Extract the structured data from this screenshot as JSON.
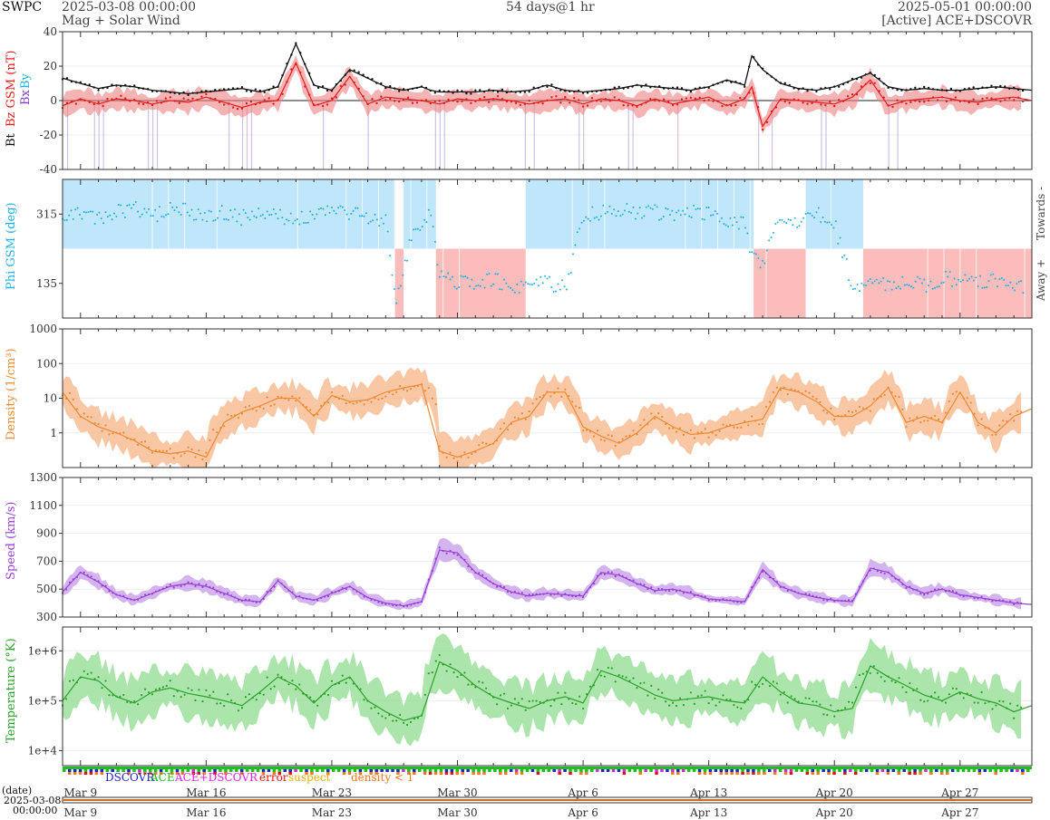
{
  "header": {
    "org": "SWPC",
    "start": "2025-03-08 00:00:00",
    "subtitle": "Mag + Solar Wind",
    "span": "54 days@1 hr",
    "end": "2025-05-01 00:00:00",
    "source": "[Active] ACE+DSCOVR"
  },
  "footer": {
    "date_label": "(date)",
    "date_value": "2025-03-08",
    "time_value": "00:00:00"
  },
  "colors": {
    "bt": "#111111",
    "bz": "#e81b1b",
    "bz_fill": "#f08080",
    "neg_bz": "#b9a6d9",
    "by": "#1fb0e6",
    "phi_towards": "#bfe6fb",
    "phi_away": "#fbbcbc",
    "density": "#f08a32",
    "density_fill": "#f7b486",
    "speed": "#9940d6",
    "speed_fill": "#c59be9",
    "temp": "#2aa22a",
    "temp_fill": "#8fdc8f",
    "dscovr": "#2222cc",
    "ace": "#22bb22",
    "ace_dscovr": "#dd22dd",
    "error": "#dd1111",
    "suspect": "#e0b000",
    "density_lt1": "#f07820"
  },
  "chart_data": [
    {
      "type": "line",
      "panel": "mag",
      "ylabel_parts": [
        "Bt",
        "Bz GSM (nT)",
        "Bx",
        "By"
      ],
      "ylim": [
        -40,
        40
      ],
      "yticks": [
        40,
        20,
        0,
        -20,
        -40
      ],
      "series": [
        {
          "name": "Bt",
          "x": [
            0,
            1,
            2,
            3,
            4,
            5,
            6,
            7,
            8,
            9,
            10,
            11,
            12,
            13,
            14,
            15,
            16,
            17,
            18,
            19,
            19.5,
            20,
            20.5,
            21,
            22,
            23,
            24,
            25,
            26,
            27,
            28,
            29,
            30,
            31,
            32,
            33,
            34,
            35,
            36,
            37,
            38,
            38.4,
            39,
            40,
            41,
            42,
            43,
            44,
            45,
            46,
            47,
            48,
            49,
            50,
            51,
            52,
            53,
            54
          ],
          "values": [
            13,
            10,
            7,
            9,
            8,
            6,
            5,
            4,
            5,
            6,
            7,
            5,
            8,
            33,
            9,
            6,
            18,
            13,
            8,
            6,
            7,
            8,
            6,
            5,
            5,
            5,
            6,
            5,
            6,
            9,
            6,
            5,
            6,
            7,
            9,
            8,
            7,
            6,
            8,
            12,
            9,
            26,
            18,
            10,
            7,
            6,
            8,
            12,
            16,
            8,
            6,
            7,
            6,
            6,
            7,
            8,
            7,
            6
          ]
        },
        {
          "name": "Bz GSM",
          "x": [
            0,
            1,
            2,
            3,
            4,
            5,
            6,
            7,
            8,
            9,
            10,
            11,
            12,
            13,
            14,
            15,
            16,
            17,
            18,
            19,
            20,
            21,
            22,
            23,
            24,
            25,
            26,
            27,
            28,
            29,
            30,
            31,
            32,
            33,
            34,
            35,
            36,
            37,
            38,
            38.4,
            39,
            40,
            41,
            42,
            43,
            44,
            45,
            46,
            47,
            48,
            49,
            50,
            51,
            52,
            53,
            54
          ],
          "values": [
            -3,
            1,
            -2,
            1,
            0,
            -2,
            0,
            -1,
            2,
            -1,
            -4,
            -1,
            0,
            22,
            -3,
            0,
            14,
            -2,
            2,
            1,
            0,
            -2,
            1,
            0,
            1,
            0,
            -2,
            0,
            1,
            -2,
            1,
            0,
            -3,
            1,
            -2,
            0,
            2,
            -3,
            1,
            8,
            -15,
            1,
            0,
            -1,
            -2,
            2,
            12,
            -3,
            0,
            1,
            2,
            0,
            -1,
            1,
            2,
            0
          ]
        }
      ]
    },
    {
      "type": "scatter",
      "panel": "phi",
      "ylabel": "Phi GSM (deg)",
      "yticks": [
        315,
        135
      ],
      "ylim": [
        45,
        405
      ],
      "side_labels": [
        "Towards -",
        "Away +"
      ],
      "sectors": [
        {
          "from": 0,
          "to": 18.5,
          "sector": "towards"
        },
        {
          "from": 18.5,
          "to": 19,
          "sector": "away"
        },
        {
          "from": 19,
          "to": 20.8,
          "sector": "towards"
        },
        {
          "from": 20.8,
          "to": 25.8,
          "sector": "away"
        },
        {
          "from": 25.8,
          "to": 38.5,
          "sector": "towards"
        },
        {
          "from": 38.5,
          "to": 41.4,
          "sector": "away"
        },
        {
          "from": 41.4,
          "to": 44.6,
          "sector": "towards"
        },
        {
          "from": 44.6,
          "to": 54,
          "sector": "away"
        }
      ],
      "series": [
        {
          "name": "Phi",
          "x": [
            0,
            1,
            2,
            3,
            4,
            5,
            6,
            7,
            8,
            9,
            10,
            11,
            12,
            13,
            14,
            15,
            16,
            17,
            18,
            18.6,
            19.5,
            20.5,
            21,
            22,
            23,
            24,
            25,
            26,
            27,
            28,
            29,
            30,
            31,
            32,
            33,
            34,
            35,
            36,
            37,
            38,
            38.3,
            39,
            40,
            41,
            42,
            43,
            44,
            45,
            46,
            47,
            48,
            49,
            50,
            51,
            52,
            53,
            54
          ],
          "values": [
            315,
            320,
            300,
            318,
            330,
            310,
            325,
            322,
            315,
            320,
            305,
            318,
            310,
            300,
            315,
            320,
            320,
            310,
            300,
            90,
            270,
            310,
            160,
            140,
            135,
            145,
            130,
            125,
            140,
            120,
            310,
            320,
            330,
            315,
            320,
            310,
            325,
            315,
            300,
            290,
            220,
            190,
            310,
            300,
            320,
            290,
            130,
            140,
            135,
            140,
            130,
            145,
            150,
            135,
            140,
            130,
            125
          ]
        }
      ]
    },
    {
      "type": "line",
      "panel": "density",
      "ylabel": "Density (1/cm³)",
      "scale": "log",
      "yticks": [
        "1000",
        "100",
        "10",
        "1"
      ],
      "ylim": [
        0.1,
        1000
      ],
      "series": [
        {
          "name": "Density",
          "x": [
            0,
            1,
            2,
            3,
            4,
            5,
            6,
            7,
            8,
            9,
            10,
            11,
            12,
            13,
            14,
            15,
            16,
            17,
            18,
            19,
            20,
            21,
            22,
            23,
            24,
            25,
            26,
            27,
            28,
            29,
            30,
            31,
            32,
            33,
            34,
            35,
            36,
            37,
            38,
            39,
            40,
            41,
            42,
            43,
            44,
            45,
            46,
            47,
            48,
            49,
            50,
            51,
            52,
            53,
            54
          ],
          "values": [
            15,
            3,
            1.5,
            1,
            0.6,
            0.3,
            0.25,
            0.3,
            0.2,
            2,
            4,
            6,
            10,
            10,
            3,
            12,
            8,
            9,
            15,
            20,
            25,
            0.3,
            0.2,
            0.3,
            0.5,
            2,
            3,
            15,
            15,
            1.5,
            0.8,
            0.5,
            1,
            3,
            1.5,
            0.9,
            1,
            1.5,
            2,
            2.5,
            20,
            15,
            8,
            3,
            3,
            6,
            20,
            2,
            3,
            2,
            15,
            2,
            1,
            3,
            5
          ]
        }
      ]
    },
    {
      "type": "line",
      "panel": "speed",
      "ylabel": "Speed (km/s)",
      "yticks": [
        1300,
        1100,
        900,
        700,
        500,
        300
      ],
      "ylim": [
        300,
        1300
      ],
      "series": [
        {
          "name": "Speed",
          "x": [
            0,
            1,
            2,
            3,
            4,
            5,
            6,
            7,
            8,
            9,
            10,
            11,
            12,
            13,
            14,
            15,
            16,
            17,
            18,
            19,
            20,
            21,
            22,
            23,
            24,
            25,
            26,
            27,
            28,
            29,
            30,
            31,
            32,
            33,
            34,
            35,
            36,
            37,
            38,
            39,
            40,
            41,
            42,
            43,
            44,
            45,
            46,
            47,
            48,
            49,
            50,
            51,
            52,
            53,
            54
          ],
          "values": [
            480,
            620,
            550,
            460,
            420,
            470,
            520,
            540,
            520,
            470,
            420,
            410,
            560,
            450,
            420,
            470,
            520,
            440,
            400,
            380,
            410,
            780,
            760,
            620,
            540,
            480,
            450,
            470,
            460,
            450,
            620,
            600,
            540,
            490,
            500,
            470,
            430,
            420,
            410,
            640,
            520,
            470,
            440,
            420,
            410,
            650,
            620,
            520,
            470,
            500,
            460,
            440,
            420,
            400,
            390
          ]
        }
      ]
    },
    {
      "type": "line",
      "panel": "temperature",
      "ylabel": "Temperature (°K)",
      "scale": "log",
      "yticks": [
        "1e+6",
        "1e+5",
        "1e+4"
      ],
      "ylim": [
        5000,
        3000000
      ],
      "series": [
        {
          "name": "Temperature",
          "x": [
            0,
            1,
            2,
            3,
            4,
            5,
            6,
            7,
            8,
            9,
            10,
            11,
            12,
            13,
            14,
            15,
            16,
            17,
            18,
            19,
            20,
            21,
            22,
            23,
            24,
            25,
            26,
            27,
            28,
            29,
            30,
            31,
            32,
            33,
            34,
            35,
            36,
            37,
            38,
            39,
            40,
            41,
            42,
            43,
            44,
            45,
            46,
            47,
            48,
            49,
            50,
            51,
            52,
            53,
            54
          ],
          "values": [
            100000,
            300000,
            250000,
            120000,
            90000,
            150000,
            180000,
            140000,
            120000,
            100000,
            80000,
            150000,
            300000,
            200000,
            90000,
            200000,
            300000,
            100000,
            60000,
            40000,
            50000,
            600000,
            400000,
            200000,
            120000,
            90000,
            70000,
            100000,
            120000,
            90000,
            400000,
            300000,
            200000,
            130000,
            100000,
            110000,
            120000,
            100000,
            90000,
            300000,
            150000,
            90000,
            80000,
            60000,
            70000,
            500000,
            300000,
            200000,
            130000,
            100000,
            150000,
            110000,
            90000,
            60000,
            80000
          ]
        }
      ]
    }
  ],
  "status_legend": [
    "DSCOVR",
    "ACE",
    "ACE+DSCOVR",
    "error",
    "suspect",
    "density < 1"
  ],
  "x_ticks": [
    {
      "day": 1,
      "label": "Mar 9"
    },
    {
      "day": 8,
      "label": "Mar 16"
    },
    {
      "day": 15,
      "label": "Mar 23"
    },
    {
      "day": 22,
      "label": "Mar 30"
    },
    {
      "day": 29,
      "label": "Apr 6"
    },
    {
      "day": 36,
      "label": "Apr 13"
    },
    {
      "day": 43,
      "label": "Apr 20"
    },
    {
      "day": 50,
      "label": "Apr 27"
    }
  ]
}
